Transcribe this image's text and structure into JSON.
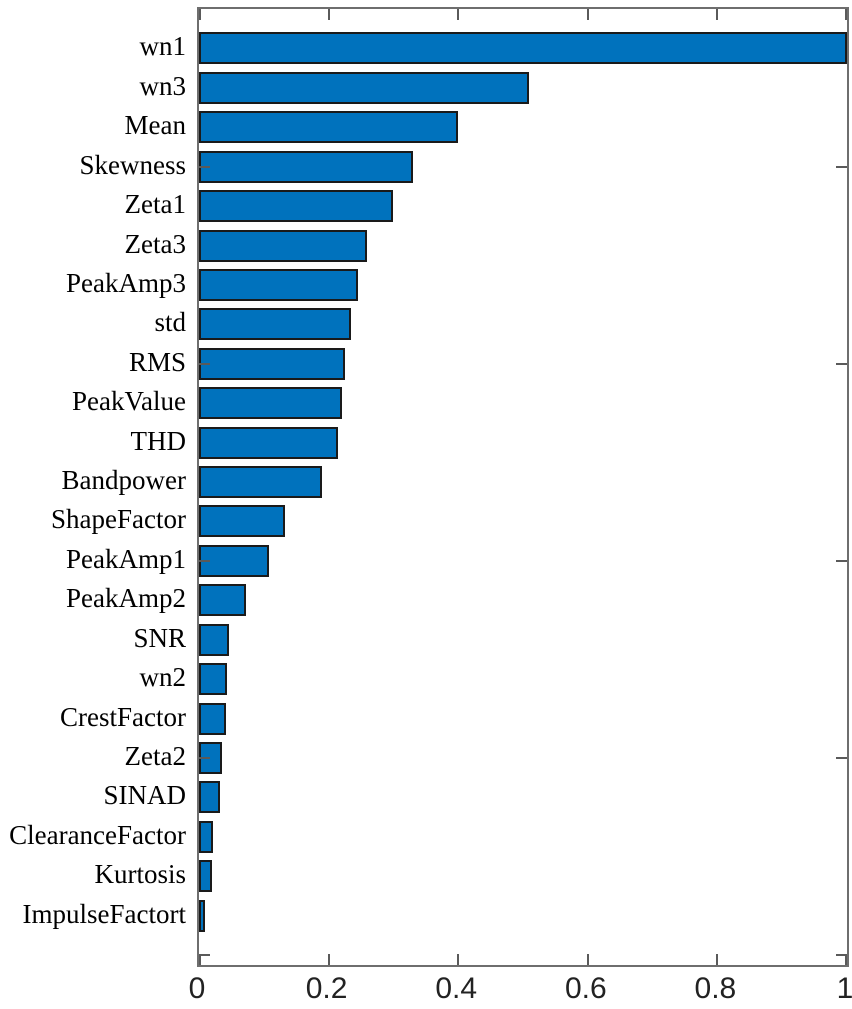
{
  "figure": {
    "background": "#ffffff"
  },
  "chart_data": {
    "type": "bar",
    "orientation": "horizontal",
    "title": "",
    "xlabel": "",
    "ylabel": "",
    "grid": false,
    "legend": null,
    "categories": [
      "wn1",
      "wn3",
      "Mean",
      "Skewness",
      "Zeta1",
      "Zeta3",
      "PeakAmp3",
      "std",
      "RMS",
      "PeakValue",
      "THD",
      "Bandpower",
      "ShapeFactor",
      "PeakAmp1",
      "PeakAmp2",
      "SNR",
      "wn2",
      "CrestFactor",
      "Zeta2",
      "SINAD",
      "ClearanceFactor",
      "Kurtosis",
      "ImpulseFactort"
    ],
    "values": [
      1.0,
      0.51,
      0.4,
      0.33,
      0.3,
      0.26,
      0.245,
      0.235,
      0.225,
      0.22,
      0.215,
      0.19,
      0.133,
      0.108,
      0.073,
      0.046,
      0.043,
      0.042,
      0.035,
      0.033,
      0.021,
      0.02,
      0.01
    ],
    "xlim": [
      0,
      1
    ],
    "xticks": [
      0,
      0.2,
      0.4,
      0.6,
      0.8,
      1
    ],
    "xtick_labels": [
      "0",
      "0.2",
      "0.4",
      "0.6",
      "0.8",
      "1"
    ],
    "ytick_numeric_positions": [
      0,
      5,
      10,
      15,
      20
    ],
    "ylim": [
      -0.25,
      24
    ],
    "bar_color": "#0072BD",
    "bar_edge_color": "#1a1a1a",
    "axis_color": "#6e6e6e",
    "tick_color": "#5a5a5a",
    "y_label_color": "#000000",
    "x_label_color": "#222222"
  }
}
